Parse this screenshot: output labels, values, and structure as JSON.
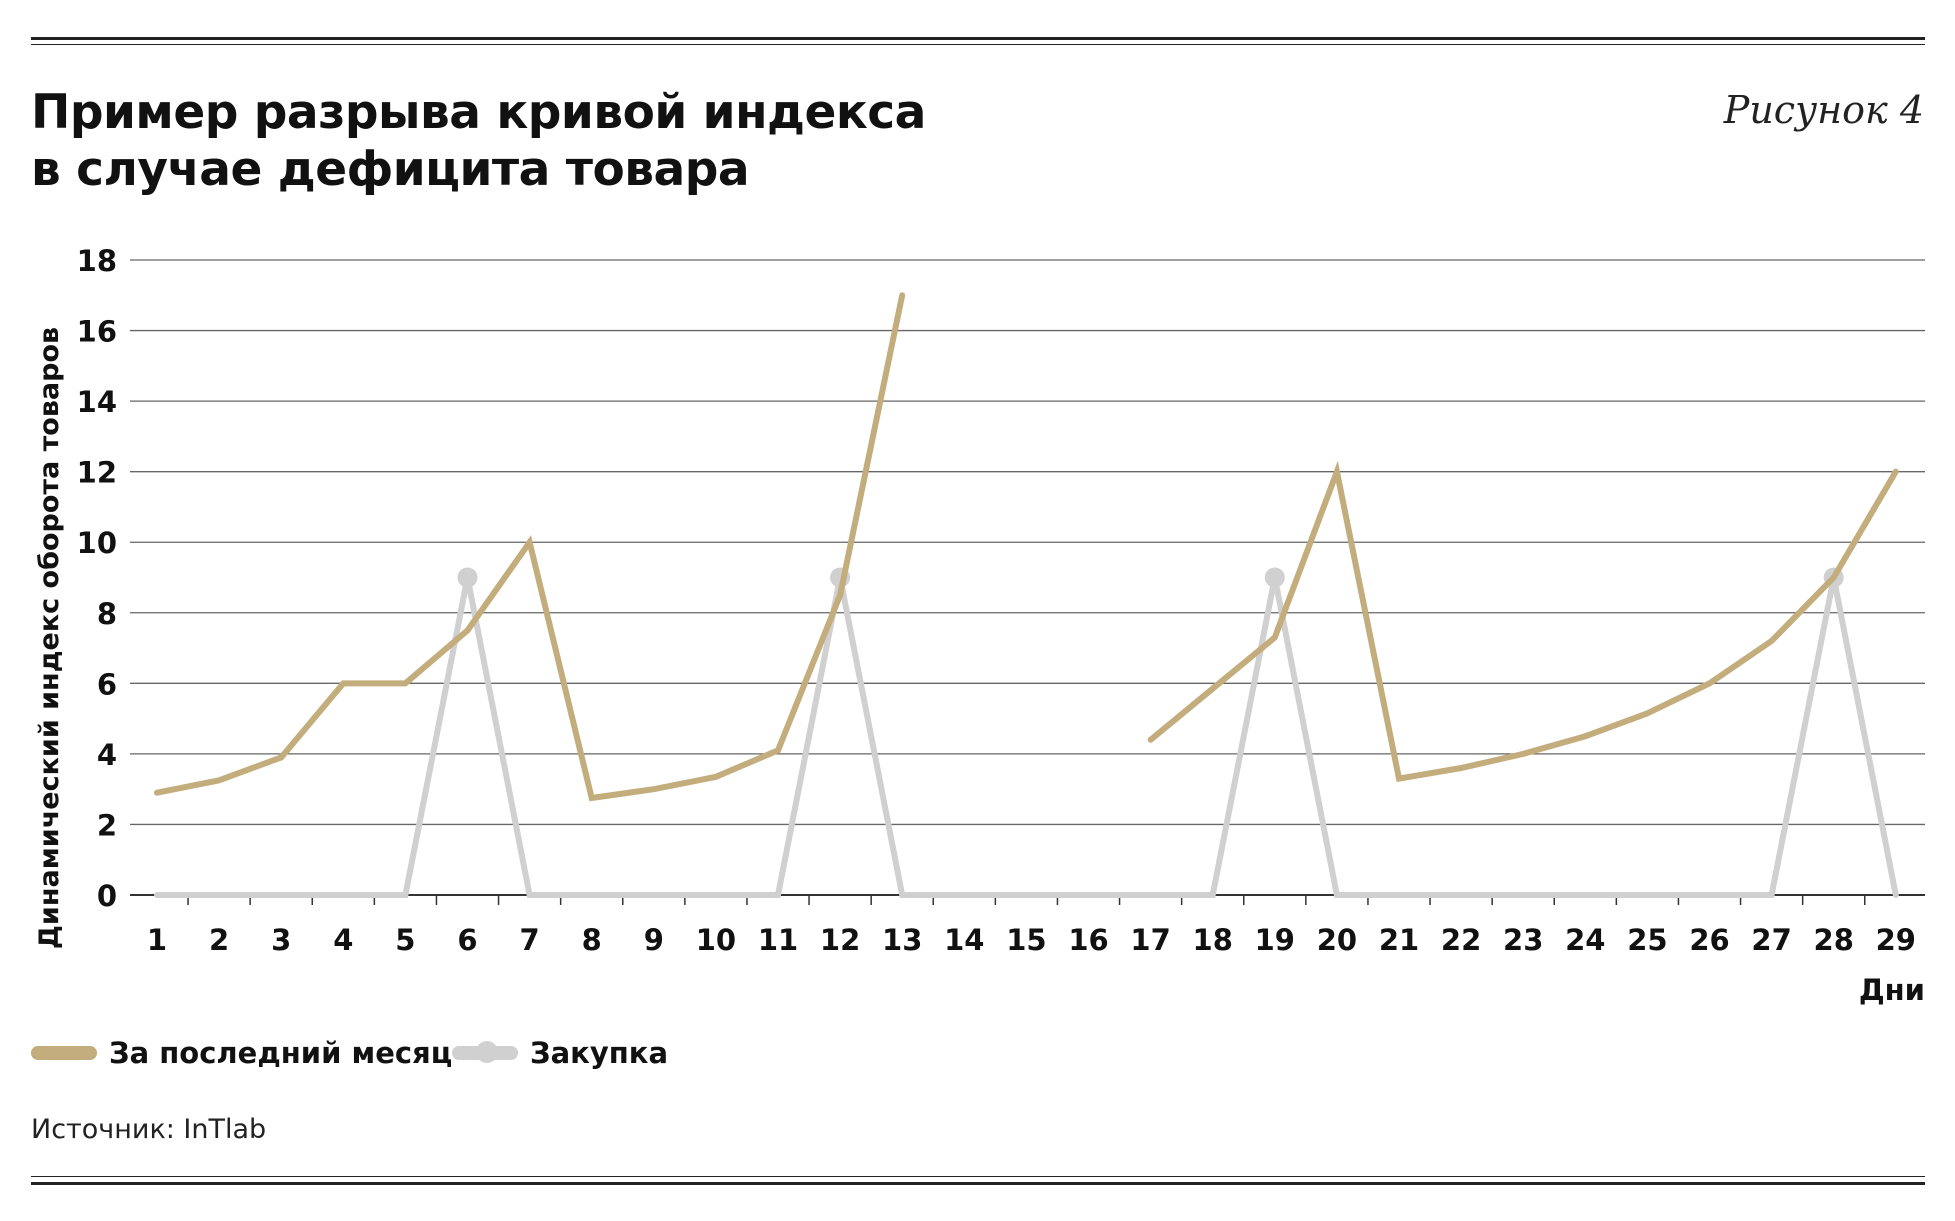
{
  "title_lines": [
    "Пример разрыва кривой индекса",
    "в случае дефицита товара"
  ],
  "figure_label": "Рисунок 4",
  "source": "Источник: InTlab",
  "colors": {
    "monthly": "#c4ad7c",
    "purchase": "#d0d0d0",
    "grid": "#555555",
    "text": "#111111"
  },
  "chart_data": {
    "type": "line",
    "title": "Пример разрыва кривой индекса в случае дефицита товара",
    "xlabel": "Дни",
    "ylabel": "Динамический индекс оборота товаров",
    "x": [
      1,
      2,
      3,
      4,
      5,
      6,
      7,
      8,
      9,
      10,
      11,
      12,
      13,
      14,
      15,
      16,
      17,
      18,
      19,
      20,
      21,
      22,
      23,
      24,
      25,
      26,
      27,
      28,
      29
    ],
    "ylim": [
      0,
      18
    ],
    "yticks": [
      0,
      2,
      4,
      6,
      8,
      10,
      12,
      14,
      16,
      18
    ],
    "grid": true,
    "legend": "bottom-left",
    "series": [
      {
        "name": "За последний месяц",
        "color": "#c4ad7c",
        "values": [
          2.9,
          3.25,
          3.9,
          6.0,
          6.0,
          7.5,
          10.0,
          2.75,
          3.0,
          3.35,
          4.1,
          8.5,
          17.0,
          null,
          null,
          null,
          4.4,
          5.85,
          7.3,
          12.0,
          3.3,
          3.6,
          4.0,
          4.5,
          5.15,
          6.0,
          7.2,
          9.0,
          12.0
        ]
      },
      {
        "name": "Закупка",
        "color": "#d0d0d0",
        "values": [
          0,
          0,
          0,
          0,
          0,
          9,
          0,
          0,
          0,
          0,
          0,
          9,
          0,
          0,
          0,
          0,
          0,
          0,
          9,
          0,
          0,
          0,
          0,
          0,
          0,
          0,
          0,
          9,
          0
        ],
        "markers_at": [
          6,
          12,
          19,
          28
        ]
      }
    ]
  }
}
